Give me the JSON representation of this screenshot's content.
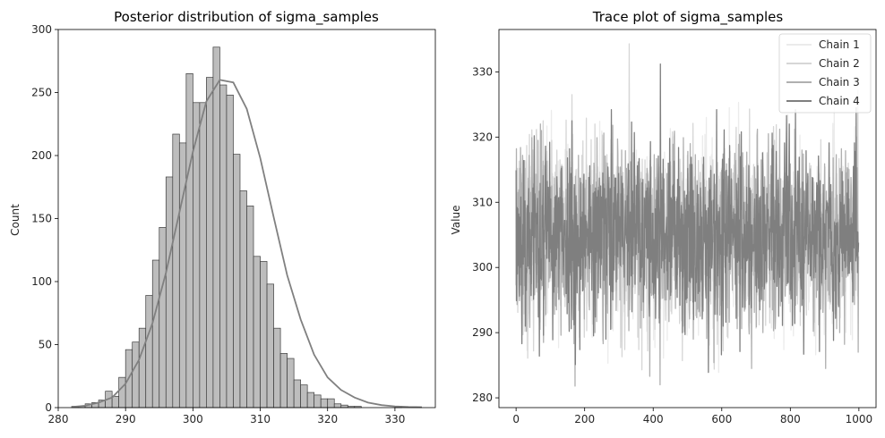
{
  "chart_data": [
    {
      "type": "bar",
      "subtype": "histogram-with-kde",
      "title": "Posterior distribution of sigma_samples",
      "xlabel": "",
      "ylabel": "Count",
      "xlim": [
        280,
        336
      ],
      "ylim": [
        0,
        300
      ],
      "xticks": [
        280,
        290,
        300,
        310,
        320,
        330
      ],
      "yticks": [
        0,
        50,
        100,
        150,
        200,
        250,
        300
      ],
      "bin_start": 282.0,
      "bin_width": 1.0,
      "values": [
        1,
        1,
        3,
        4,
        6,
        13,
        9,
        24,
        46,
        52,
        63,
        89,
        117,
        143,
        183,
        217,
        210,
        265,
        242,
        242,
        262,
        286,
        256,
        248,
        201,
        172,
        160,
        120,
        116,
        98,
        63,
        43,
        39,
        22,
        18,
        12,
        10,
        7,
        7,
        3,
        2,
        1,
        1,
        0,
        0,
        0,
        0,
        0,
        1
      ],
      "kde": {
        "x": [
          282,
          284,
          286,
          288,
          290,
          292,
          294,
          296,
          298,
          300,
          302,
          304,
          306,
          308,
          310,
          312,
          314,
          316,
          318,
          320,
          322,
          324,
          326,
          328,
          330,
          332,
          334
        ],
        "y": [
          0.5,
          1.5,
          4,
          8,
          19,
          38,
          67,
          107,
          155,
          203,
          243,
          260,
          258,
          237,
          198,
          151,
          105,
          70,
          42,
          24,
          14,
          8,
          4,
          2,
          1,
          0.5,
          0.3
        ]
      },
      "colors": {
        "bar_fill": "#bdbdbd",
        "bar_edge": "#3d3d3d",
        "kde_line": "#808080"
      }
    },
    {
      "type": "line",
      "title": "Trace plot of sigma_samples",
      "xlabel": "",
      "ylabel": "Value",
      "xlim": [
        -50,
        1050
      ],
      "ylim": [
        278.5,
        336.5
      ],
      "xticks": [
        0,
        200,
        400,
        600,
        800,
        1000
      ],
      "yticks": [
        280,
        290,
        300,
        310,
        320,
        330
      ],
      "n_samples": 1000,
      "center_value": 305,
      "spread_sd": 7,
      "max_value": 334.3,
      "min_value": 281.8,
      "legend_position": "top-right",
      "series": [
        {
          "name": "Chain 1",
          "color": "#ebebeb",
          "seed": 11,
          "values": []
        },
        {
          "name": "Chain 2",
          "color": "#d6d6d6",
          "seed": 23,
          "values": []
        },
        {
          "name": "Chain 3",
          "color": "#b0b0b0",
          "seed": 37,
          "values": []
        },
        {
          "name": "Chain 4",
          "color": "#7f7f7f",
          "seed": 53,
          "values": []
        }
      ]
    }
  ]
}
